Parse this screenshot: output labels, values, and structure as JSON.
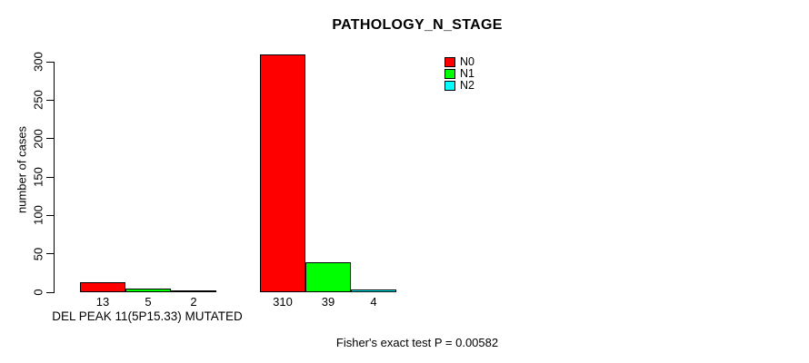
{
  "chart_data": {
    "type": "bar",
    "title": "PATHOLOGY_N_STAGE",
    "ylabel": "number of cases",
    "xlabel": "DEL PEAK 11(5P15.33) MUTATED",
    "annotation": "Fisher's exact test P = 0.00582",
    "ylim": [
      0,
      300
    ],
    "yticks": [
      0,
      50,
      100,
      150,
      200,
      250,
      300
    ],
    "grid": false,
    "legend_position": "top-right",
    "categories": [
      "DEL PEAK 11(5P15.33) MUTATED",
      ""
    ],
    "series": [
      {
        "name": "N0",
        "color": "#ff0000",
        "values": [
          13,
          310
        ]
      },
      {
        "name": "N1",
        "color": "#00ff00",
        "values": [
          5,
          39
        ]
      },
      {
        "name": "N2",
        "color": "#00ffff",
        "values": [
          2,
          4
        ]
      }
    ],
    "bar_value_labels": [
      [
        13,
        5,
        2
      ],
      [
        310,
        39,
        4
      ]
    ]
  }
}
